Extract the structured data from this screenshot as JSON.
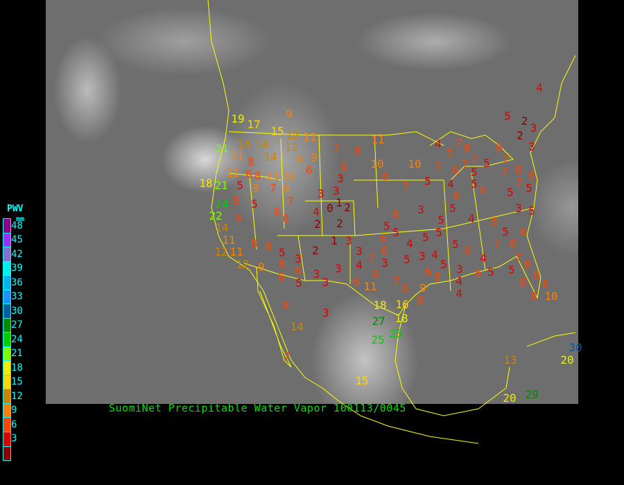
{
  "title": "SuomiNet Precipitable Water Vapor  100113/0045",
  "legend": {
    "heading": "PWV",
    "unit": "mm",
    "labels": [
      "48",
      "45",
      "42",
      "39",
      "36",
      "33",
      "30",
      "27",
      "24",
      "21",
      "18",
      "15",
      "12",
      "9",
      "6",
      "3"
    ],
    "colors": [
      "#8b008b",
      "#9b30ff",
      "#8470d0",
      "#00eeee",
      "#00b2ee",
      "#1e90ff",
      "#005f9f",
      "#008b00",
      "#00cd00",
      "#7cfc00",
      "#eeee00",
      "#ffd700",
      "#cd8500",
      "#ff8000",
      "#ff4500",
      "#dd0000",
      "#8b0000"
    ]
  },
  "map": {
    "border_color": "#ffff00"
  },
  "stations": [
    "9",
    "19",
    "17",
    "21",
    "15",
    "12",
    "11",
    "14",
    "14",
    "12",
    "11",
    "14",
    "8",
    "8",
    "8",
    "9",
    "9",
    "6",
    "11",
    "11",
    "10",
    "18",
    "21",
    "5",
    "9",
    "7",
    "9",
    "7",
    "8",
    "5",
    "24",
    "22",
    "6",
    "8",
    "6",
    "3",
    "3",
    "1",
    "4",
    "0",
    "2",
    "2",
    "2",
    "14",
    "11",
    "12",
    "11",
    "12",
    "8",
    "6",
    "5",
    "3",
    "8",
    "6",
    "6",
    "5",
    "9",
    "2",
    "1",
    "3",
    "3",
    "3",
    "3",
    "3",
    "4",
    "7",
    "6",
    "3",
    "5",
    "3",
    "4",
    "8",
    "3",
    "14",
    "7",
    "6",
    "11",
    "6",
    "7",
    "6",
    "9",
    "8",
    "18",
    "16",
    "27",
    "18",
    "25",
    "25",
    "15",
    "11",
    "7",
    "8",
    "6",
    "3",
    "10",
    "10",
    "6",
    "7",
    "5",
    "4",
    "6",
    "5",
    "3",
    "8",
    "5",
    "5",
    "6",
    "4",
    "5",
    "5",
    "4",
    "5",
    "2",
    "3",
    "2",
    "3",
    "4",
    "7",
    "7",
    "6",
    "6",
    "7",
    "7",
    "6",
    "7",
    "5",
    "5",
    "6",
    "5",
    "7",
    "7",
    "6",
    "6",
    "7",
    "5",
    "5",
    "3",
    "5",
    "8",
    "4",
    "5",
    "8",
    "6",
    "7",
    "5",
    "6",
    "4",
    "5",
    "6",
    "8",
    "5",
    "3",
    "4",
    "4",
    "6",
    "5",
    "5",
    "7",
    "8",
    "6",
    "8",
    "8",
    "8",
    "10",
    "13",
    "20",
    "20",
    "29",
    "30",
    "2"
  ]
}
